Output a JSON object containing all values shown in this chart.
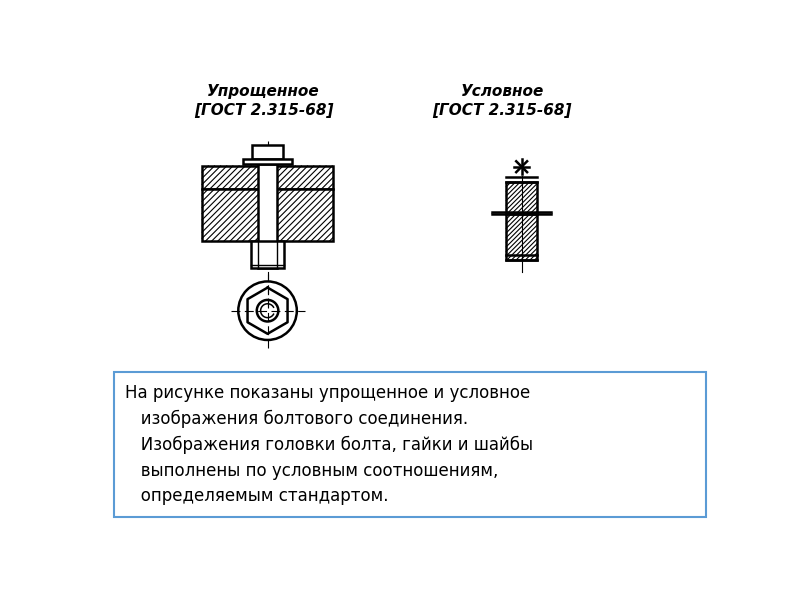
{
  "bg_color": "#ffffff",
  "line_color": "#000000",
  "title1": "Упрощенное\n[ГОСТ 2.315-68]",
  "title2": "Условное\n[ГОСТ 2.315-68]",
  "title_fontsize": 11,
  "text_box": "На рисунке показаны упрощенное и условное\n   изображения болтового соединения.\n   Изображения головки болта, гайки и шайбы\n   выполнены по условным соотношениям,\n   определяемым стандартом.",
  "text_fontsize": 12,
  "box_border_color": "#5b9bd5"
}
